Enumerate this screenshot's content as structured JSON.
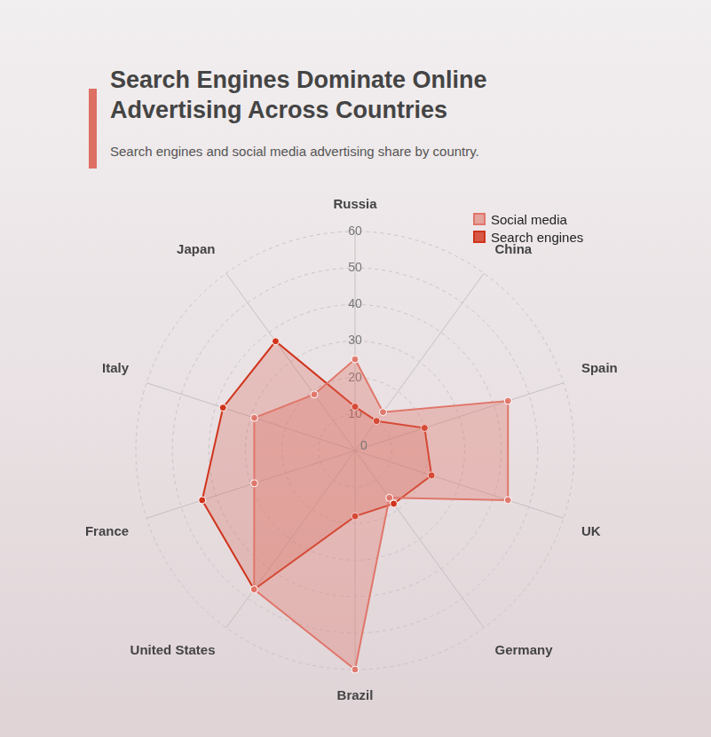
{
  "chart_data": {
    "type": "radar",
    "title": "Search Engines Dominate Online Advertising Across Countries",
    "subtitle": "Search engines and social media advertising share by country.",
    "categories": [
      "Russia",
      "China",
      "Spain",
      "UK",
      "Germany",
      "Brazil",
      "United States",
      "France",
      "Italy",
      "Japan"
    ],
    "series": [
      {
        "name": "Social media",
        "color": "#e0766a",
        "values": [
          25,
          13,
          44,
          44,
          16,
          60,
          47,
          29,
          29,
          19
        ]
      },
      {
        "name": "Search engines",
        "color": "#d0341c",
        "values": [
          12,
          10,
          20,
          22,
          18,
          18,
          47,
          44,
          38,
          37
        ]
      }
    ],
    "ylim": [
      0,
      60
    ],
    "yticks": [
      0,
      10,
      20,
      30,
      40,
      50,
      60
    ],
    "grid": true,
    "legend": "top-right"
  }
}
